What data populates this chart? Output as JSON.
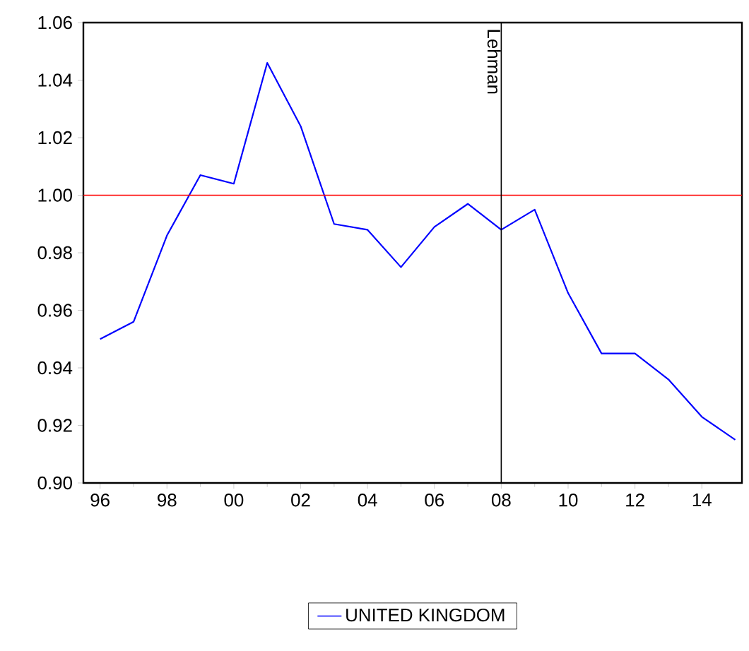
{
  "chart_data": {
    "type": "line",
    "x": [
      1996,
      1997,
      1998,
      1999,
      2000,
      2001,
      2002,
      2003,
      2004,
      2005,
      2006,
      2007,
      2008,
      2009,
      2010,
      2011,
      2012,
      2013,
      2014,
      2015
    ],
    "series": [
      {
        "name": "UNITED KINGDOM",
        "color": "#0000ff",
        "values": [
          0.95,
          0.956,
          0.986,
          1.007,
          1.004,
          1.046,
          1.024,
          0.99,
          0.988,
          0.975,
          0.989,
          0.997,
          0.988,
          0.995,
          0.966,
          0.945,
          0.945,
          0.936,
          0.923,
          0.915
        ]
      }
    ],
    "xlim": [
      1995.5,
      2015.2
    ],
    "xticks": [
      {
        "value": 1996,
        "label": "96"
      },
      {
        "value": 1998,
        "label": "98"
      },
      {
        "value": 2000,
        "label": "00"
      },
      {
        "value": 2002,
        "label": "02"
      },
      {
        "value": 2004,
        "label": "04"
      },
      {
        "value": 2006,
        "label": "06"
      },
      {
        "value": 2008,
        "label": "08"
      },
      {
        "value": 2010,
        "label": "10"
      },
      {
        "value": 2012,
        "label": "12"
      },
      {
        "value": 2014,
        "label": "14"
      }
    ],
    "ylim": [
      0.9,
      1.06
    ],
    "yticks": [
      {
        "value": 0.9,
        "label": "0.90"
      },
      {
        "value": 0.92,
        "label": "0.92"
      },
      {
        "value": 0.94,
        "label": "0.94"
      },
      {
        "value": 0.96,
        "label": "0.96"
      },
      {
        "value": 0.98,
        "label": "0.98"
      },
      {
        "value": 1.0,
        "label": "1.00"
      },
      {
        "value": 1.02,
        "label": "1.02"
      },
      {
        "value": 1.04,
        "label": "1.04"
      },
      {
        "value": 1.06,
        "label": "1.06"
      }
    ],
    "ref_lines": [
      {
        "axis": "y",
        "value": 1.0,
        "color": "#ff0000"
      },
      {
        "axis": "x",
        "value": 2008,
        "label": "Lehman",
        "color": "#000000"
      }
    ],
    "legend": "bottom",
    "marker": "none",
    "line_style": "solid"
  }
}
